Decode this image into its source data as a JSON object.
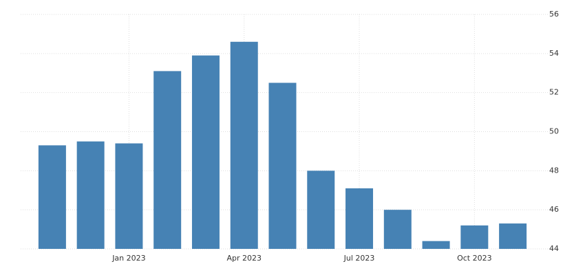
{
  "chart_data": {
    "type": "bar",
    "categories": [
      null,
      null,
      "Jan 2023",
      null,
      null,
      "Apr 2023",
      null,
      null,
      "Jul 2023",
      null,
      null,
      "Oct 2023",
      null
    ],
    "values": [
      49.3,
      49.5,
      49.4,
      53.1,
      53.9,
      54.6,
      52.5,
      48.0,
      47.1,
      46.0,
      44.4,
      45.2,
      45.3
    ],
    "color": "#4682b4",
    "ylim": [
      44,
      56
    ],
    "yticks": [
      44,
      46,
      48,
      50,
      52,
      54,
      56
    ],
    "grid": true,
    "y_axis_side": "right"
  }
}
